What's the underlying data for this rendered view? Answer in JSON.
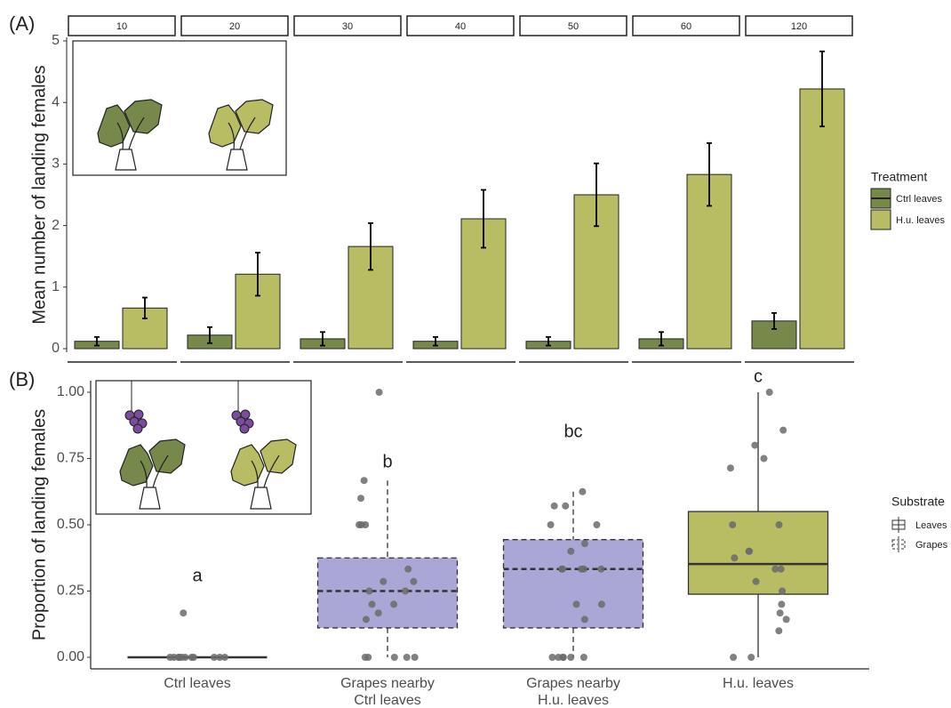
{
  "chart_data": [
    {
      "type": "bar",
      "panel_label": "(A)",
      "ylabel": "Mean number of landing females",
      "facets": [
        10,
        20,
        30,
        40,
        50,
        60,
        120
      ],
      "ylim": [
        0,
        5
      ],
      "yticks": [
        0,
        1,
        2,
        3,
        4,
        5
      ],
      "legend_title": "Treatment",
      "series": [
        {
          "name": "Ctrl leaves",
          "color": "#76894a",
          "values": [
            0.12,
            0.22,
            0.16,
            0.12,
            0.12,
            0.16,
            0.45
          ],
          "errors": [
            0.07,
            0.13,
            0.11,
            0.07,
            0.07,
            0.11,
            0.13
          ]
        },
        {
          "name": "H.u. leaves",
          "color": "#b8bc62",
          "values": [
            0.66,
            1.21,
            1.66,
            2.11,
            2.5,
            2.83,
            4.22
          ],
          "errors": [
            0.17,
            0.35,
            0.38,
            0.47,
            0.51,
            0.51,
            0.61
          ]
        }
      ]
    },
    {
      "type": "box",
      "panel_label": "(B)",
      "ylabel": "Proportion of landing females",
      "categories": [
        [
          "Ctrl leaves"
        ],
        [
          "Grapes nearby",
          "Ctrl leaves"
        ],
        [
          "Grapes nearby",
          "H.u. leaves"
        ],
        [
          "H.u. leaves"
        ]
      ],
      "ylim": [
        0,
        1
      ],
      "yticks": [
        {
          "value": 0,
          "label": "0.00"
        },
        {
          "value": 0.25,
          "label": "0.25"
        },
        {
          "value": 0.5,
          "label": "0.50"
        },
        {
          "value": 0.75,
          "label": "0.75"
        },
        {
          "value": 1,
          "label": "1.00"
        }
      ],
      "legend_title": "Substrate",
      "legend": [
        {
          "name": "Leaves",
          "linestyle": "solid"
        },
        {
          "name": "Grapes",
          "linestyle": "dashed"
        }
      ],
      "point_color": "#6b6b6b",
      "boxes": [
        {
          "min": 0,
          "q1": 0,
          "median": 0,
          "q3": 0,
          "max": 0,
          "color": "#76894a",
          "linestyle": "solid",
          "letter": "a",
          "points": [
            0,
            0,
            0,
            0,
            0,
            0,
            0,
            0,
            0,
            0,
            0,
            0.167
          ]
        },
        {
          "min": 0,
          "q1": 0.111,
          "median": 0.25,
          "q3": 0.375,
          "max": 0.667,
          "color": "#aaa6d6",
          "linestyle": "dashed",
          "letter": "b",
          "points": [
            1.0,
            0.667,
            0.6,
            0.5,
            0.5,
            0.5,
            0.333,
            0.286,
            0.286,
            0.25,
            0.25,
            0.2,
            0.2,
            0.167,
            0.143,
            0,
            0,
            0,
            0,
            0
          ]
        },
        {
          "min": 0,
          "q1": 0.111,
          "median": 0.333,
          "q3": 0.444,
          "max": 0.625,
          "color": "#aaa6d6",
          "linestyle": "dashed",
          "letter": "bc",
          "points": [
            0.625,
            0.571,
            0.571,
            0.5,
            0.5,
            0.429,
            0.4,
            0.333,
            0.333,
            0.333,
            0.333,
            0.333,
            0.2,
            0.2,
            0.143,
            0,
            0,
            0,
            0,
            0,
            0
          ]
        },
        {
          "min": 0,
          "q1": 0.238,
          "median": 0.352,
          "q3": 0.55,
          "max": 1.0,
          "color": "#b8bc62",
          "linestyle": "solid",
          "letter": "c",
          "points": [
            1.0,
            0.857,
            0.8,
            0.75,
            0.714,
            0.5,
            0.5,
            0.4,
            0.4,
            0.375,
            0.333,
            0.333,
            0.286,
            0.25,
            0.2,
            0.167,
            0.143,
            0.1,
            0,
            0
          ]
        }
      ]
    }
  ]
}
